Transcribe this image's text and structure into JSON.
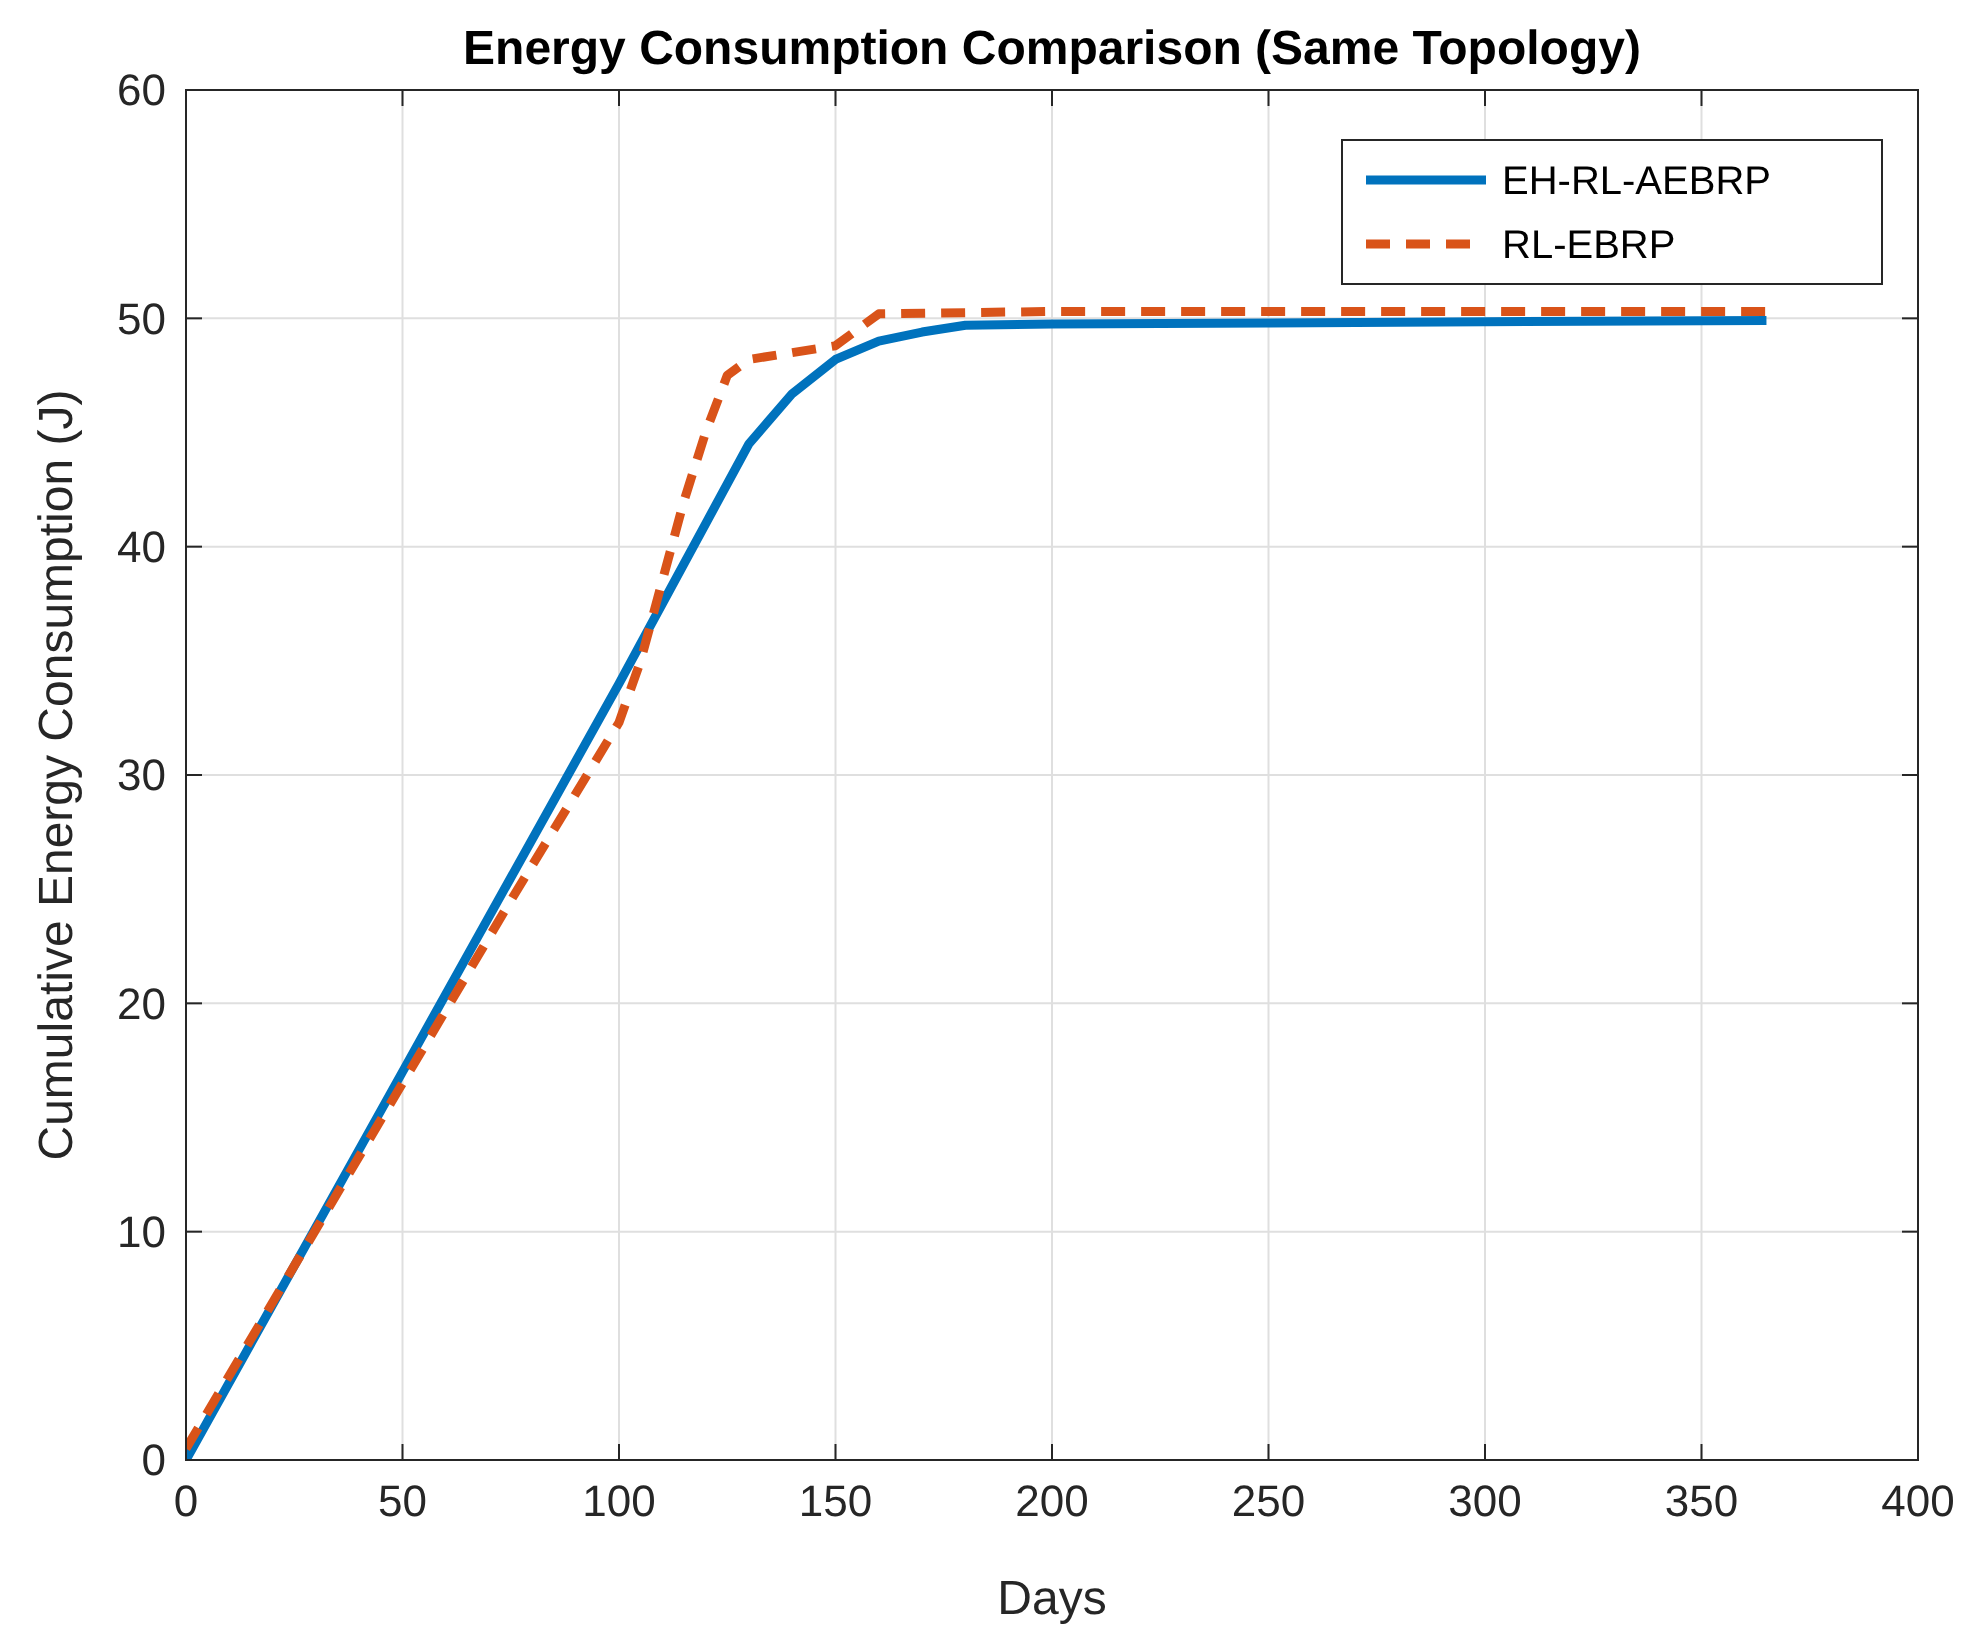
{
  "chart_data": {
    "type": "line",
    "title": "Energy Consumption Comparison (Same Topology)",
    "xlabel": "Days",
    "ylabel": "Cumulative Energy Consumption (J)",
    "xlim": [
      0,
      400
    ],
    "xticks": [
      0,
      50,
      100,
      150,
      200,
      250,
      300,
      350,
      400
    ],
    "ylim": [
      0,
      60
    ],
    "yticks": [
      0,
      10,
      20,
      30,
      40,
      50,
      60
    ],
    "grid": true,
    "legend": "top right",
    "series": [
      {
        "name": "EH-RL-AEBRP",
        "color": "#0072bd",
        "line_style": "solid",
        "x": [
          0,
          25,
          50,
          75,
          100,
          110,
          120,
          130,
          140,
          150,
          160,
          170,
          180,
          200,
          250,
          300,
          365
        ],
        "values": [
          0,
          8.5,
          17,
          25.5,
          34,
          37.5,
          41,
          44.5,
          46.7,
          48.2,
          49,
          49.4,
          49.7,
          49.75,
          49.8,
          49.85,
          49.9
        ]
      },
      {
        "name": "RL-EBRP",
        "color": "#d95319",
        "line_style": "dashed",
        "x": [
          0,
          25,
          50,
          75,
          100,
          105,
          110,
          115,
          120,
          125,
          130,
          140,
          150,
          155,
          160,
          200,
          250,
          300,
          365
        ],
        "values": [
          0.5,
          8.5,
          16.5,
          24.5,
          32.3,
          35,
          38.5,
          42,
          45,
          47.5,
          48.2,
          48.5,
          48.8,
          49.5,
          50.2,
          50.3,
          50.3,
          50.3,
          50.3
        ]
      }
    ]
  }
}
